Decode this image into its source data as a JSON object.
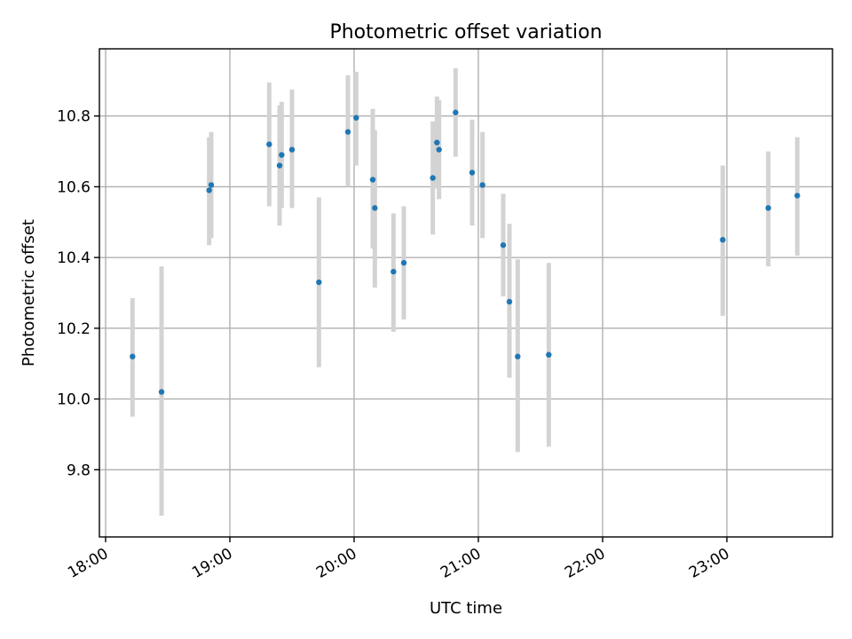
{
  "chart_data": {
    "type": "scatter",
    "title": "Photometric offset variation",
    "xlabel": "UTC time",
    "ylabel": "Photometric offset",
    "x_unit": "UTC time (HH:MM)",
    "xlim": [
      "17:57",
      "23:51"
    ],
    "ylim": [
      9.61,
      10.99
    ],
    "x_ticks": [
      "18:00",
      "19:00",
      "20:00",
      "21:00",
      "22:00",
      "23:00"
    ],
    "y_ticks": [
      "9.8",
      "10.0",
      "10.2",
      "10.4",
      "10.6",
      "10.8"
    ],
    "grid": true,
    "legend": "none",
    "point_color": "#1f77b4",
    "errorbar_color": "#d3d3d3",
    "points": [
      {
        "time": "18:13",
        "y": 10.12,
        "err_low": 9.95,
        "err_high": 10.285
      },
      {
        "time": "18:27",
        "y": 10.02,
        "err_low": 9.67,
        "err_high": 10.375
      },
      {
        "time": "18:50",
        "y": 10.59,
        "err_low": 10.435,
        "err_high": 10.74
      },
      {
        "time": "18:51",
        "y": 10.605,
        "err_low": 10.455,
        "err_high": 10.755
      },
      {
        "time": "19:19",
        "y": 10.72,
        "err_low": 10.545,
        "err_high": 10.895
      },
      {
        "time": "19:24",
        "y": 10.66,
        "err_low": 10.49,
        "err_high": 10.83
      },
      {
        "time": "19:25",
        "y": 10.69,
        "err_low": 10.54,
        "err_high": 10.84
      },
      {
        "time": "19:30",
        "y": 10.705,
        "err_low": 10.54,
        "err_high": 10.875
      },
      {
        "time": "19:43",
        "y": 10.33,
        "err_low": 10.09,
        "err_high": 10.57
      },
      {
        "time": "19:57",
        "y": 10.755,
        "err_low": 10.6,
        "err_high": 10.915
      },
      {
        "time": "20:01",
        "y": 10.795,
        "err_low": 10.66,
        "err_high": 10.925
      },
      {
        "time": "20:09",
        "y": 10.62,
        "err_low": 10.425,
        "err_high": 10.82
      },
      {
        "time": "20:10",
        "y": 10.54,
        "err_low": 10.315,
        "err_high": 10.76
      },
      {
        "time": "20:19",
        "y": 10.36,
        "err_low": 10.19,
        "err_high": 10.525
      },
      {
        "time": "20:24",
        "y": 10.385,
        "err_low": 10.225,
        "err_high": 10.545
      },
      {
        "time": "20:38",
        "y": 10.625,
        "err_low": 10.465,
        "err_high": 10.785
      },
      {
        "time": "20:40",
        "y": 10.725,
        "err_low": 10.595,
        "err_high": 10.855
      },
      {
        "time": "20:41",
        "y": 10.705,
        "err_low": 10.565,
        "err_high": 10.845
      },
      {
        "time": "20:49",
        "y": 10.81,
        "err_low": 10.685,
        "err_high": 10.935
      },
      {
        "time": "20:57",
        "y": 10.64,
        "err_low": 10.49,
        "err_high": 10.79
      },
      {
        "time": "21:02",
        "y": 10.605,
        "err_low": 10.455,
        "err_high": 10.755
      },
      {
        "time": "21:12",
        "y": 10.435,
        "err_low": 10.29,
        "err_high": 10.58
      },
      {
        "time": "21:15",
        "y": 10.275,
        "err_low": 10.06,
        "err_high": 10.495
      },
      {
        "time": "21:19",
        "y": 10.12,
        "err_low": 9.85,
        "err_high": 10.395
      },
      {
        "time": "21:34",
        "y": 10.125,
        "err_low": 9.865,
        "err_high": 10.385
      },
      {
        "time": "22:58",
        "y": 10.45,
        "err_low": 10.235,
        "err_high": 10.66
      },
      {
        "time": "23:20",
        "y": 10.54,
        "err_low": 10.375,
        "err_high": 10.7
      },
      {
        "time": "23:34",
        "y": 10.575,
        "err_low": 10.405,
        "err_high": 10.74
      }
    ]
  }
}
